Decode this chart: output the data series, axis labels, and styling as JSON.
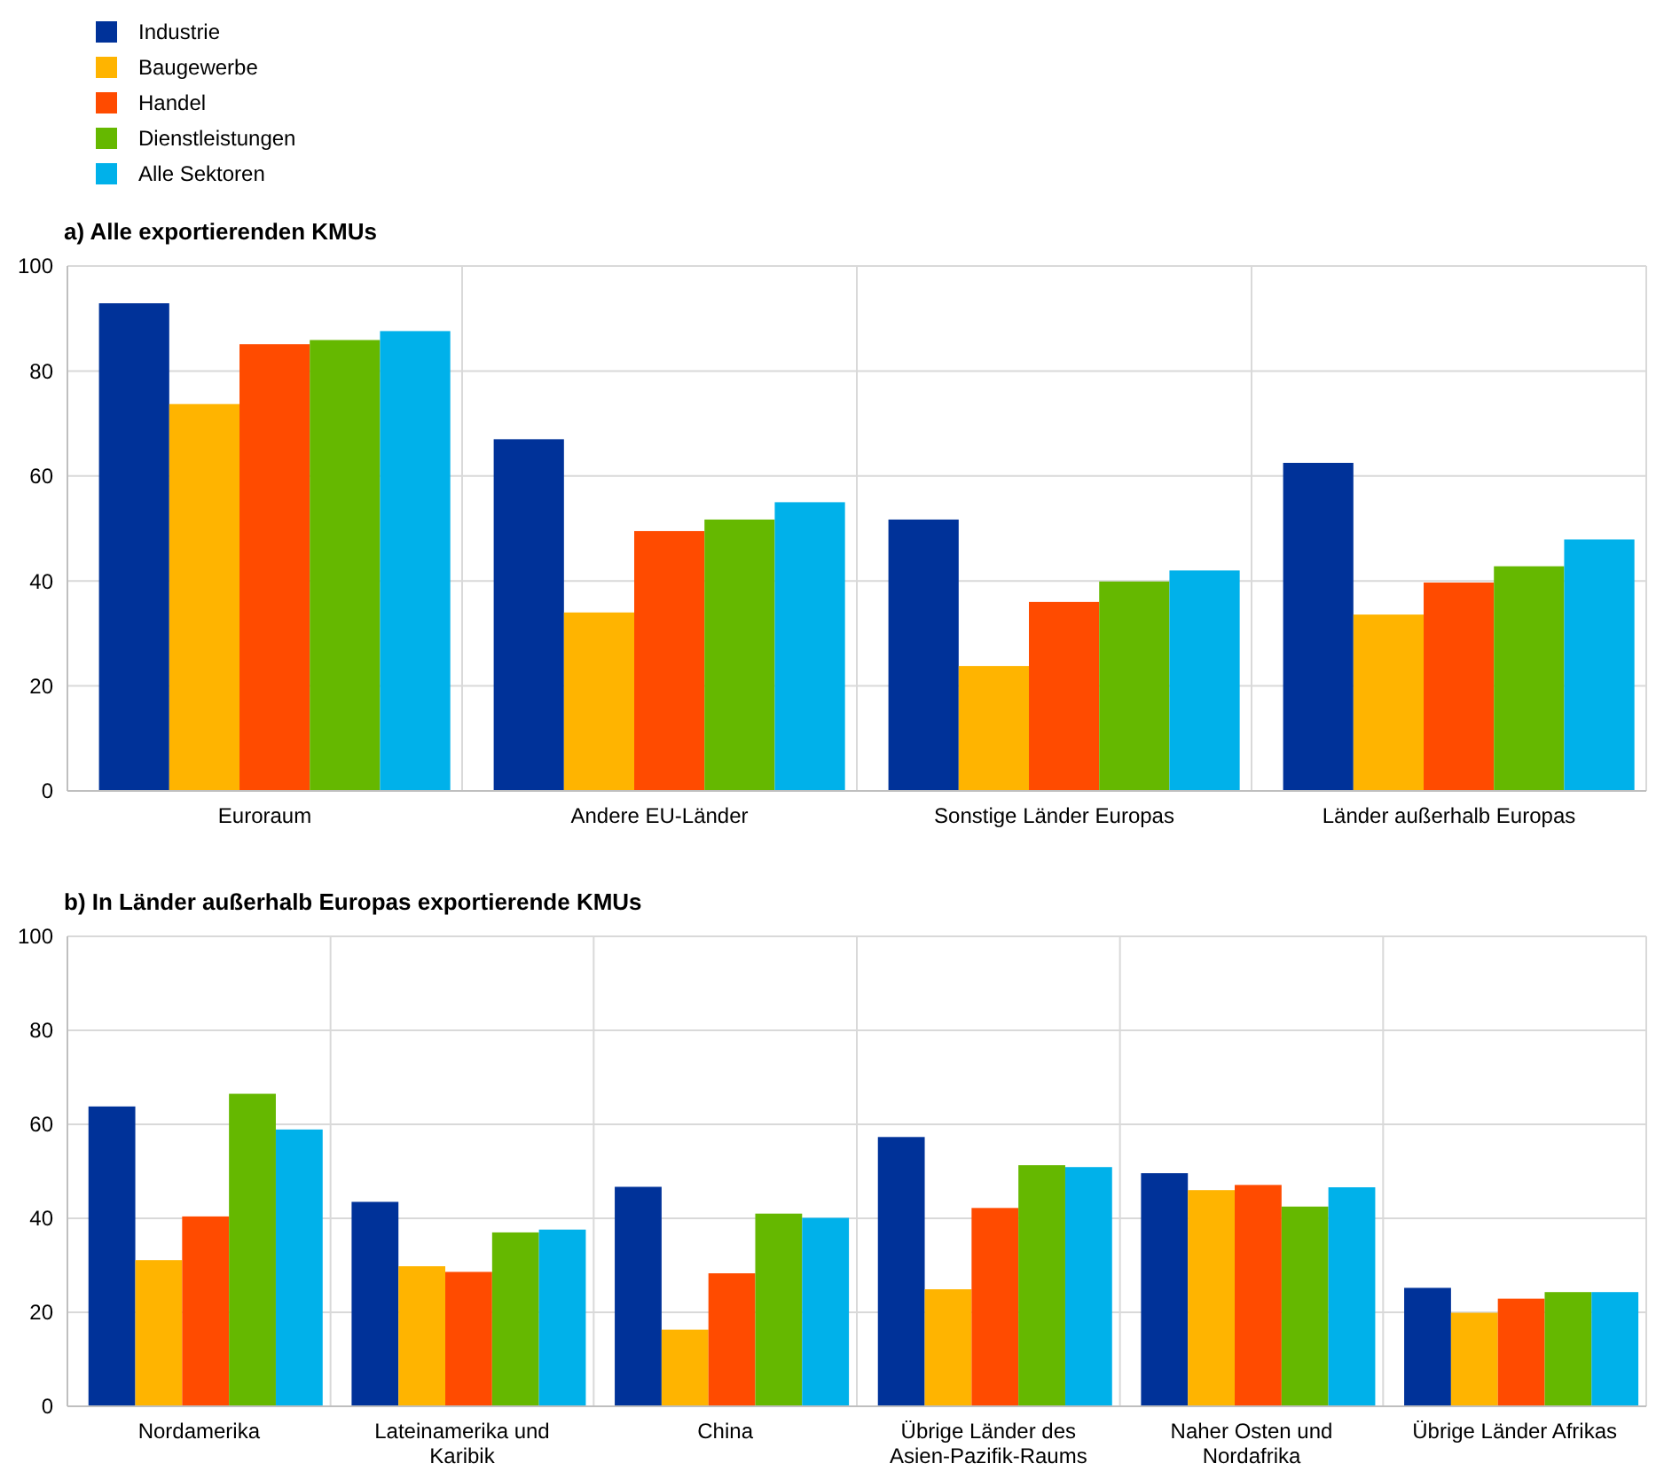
{
  "chart_data": [
    {
      "type": "bar",
      "title": "a) Alle exportierenden KMUs",
      "categories": [
        "Euroraum",
        "Andere EU-Länder",
        "Sonstige Länder Europas",
        "Länder außerhalb Europas"
      ],
      "series": [
        {
          "name": "Industrie",
          "color": "#003299",
          "values": [
            92.9,
            67,
            51.7,
            62.5
          ]
        },
        {
          "name": "Baugewerbe",
          "color": "#ffb400",
          "values": [
            73.7,
            34,
            23.8,
            33.6
          ]
        },
        {
          "name": "Handel",
          "color": "#ff4b00",
          "values": [
            85.1,
            49.5,
            36,
            39.7
          ]
        },
        {
          "name": "Dienstleistungen",
          "color": "#65b800",
          "values": [
            85.9,
            51.7,
            39.9,
            42.8
          ]
        },
        {
          "name": "Alle Sektoren",
          "color": "#00b1ea",
          "values": [
            87.6,
            55,
            42,
            47.9
          ]
        }
      ],
      "ylim": [
        0,
        100
      ],
      "yticks": [
        0,
        20,
        40,
        60,
        80,
        100
      ],
      "grid": true,
      "legend": "top left"
    },
    {
      "type": "bar",
      "title": "b) In Länder außerhalb Europas exportierende KMUs",
      "categories": [
        "Nordamerika",
        "Lateinamerika und Karibik",
        "China",
        "Übrige Länder des Asien-Pazifik-Raums",
        "Naher Osten und Nordafrika",
        "Übrige Länder Afrikas"
      ],
      "series": [
        {
          "color": "#003299",
          "values": [
            63.8,
            43.5,
            46.7,
            57.3,
            49.6,
            25.2
          ]
        },
        {
          "color": "#ffb400",
          "values": [
            31.1,
            29.8,
            16.3,
            24.9,
            46,
            19.9
          ]
        },
        {
          "color": "#ff4b00",
          "values": [
            40.4,
            28.6,
            28.3,
            42.2,
            47.1,
            22.9
          ]
        },
        {
          "color": "#65b800",
          "values": [
            66.5,
            37,
            41,
            51.3,
            42.5,
            24.3
          ]
        },
        {
          "color": "#00b1ea",
          "values": [
            58.9,
            37.6,
            40.1,
            50.9,
            46.6,
            24.3
          ]
        }
      ],
      "ylim": [
        0,
        100
      ],
      "yticks": [
        0,
        20,
        40,
        60,
        80,
        100
      ],
      "grid": true
    }
  ]
}
